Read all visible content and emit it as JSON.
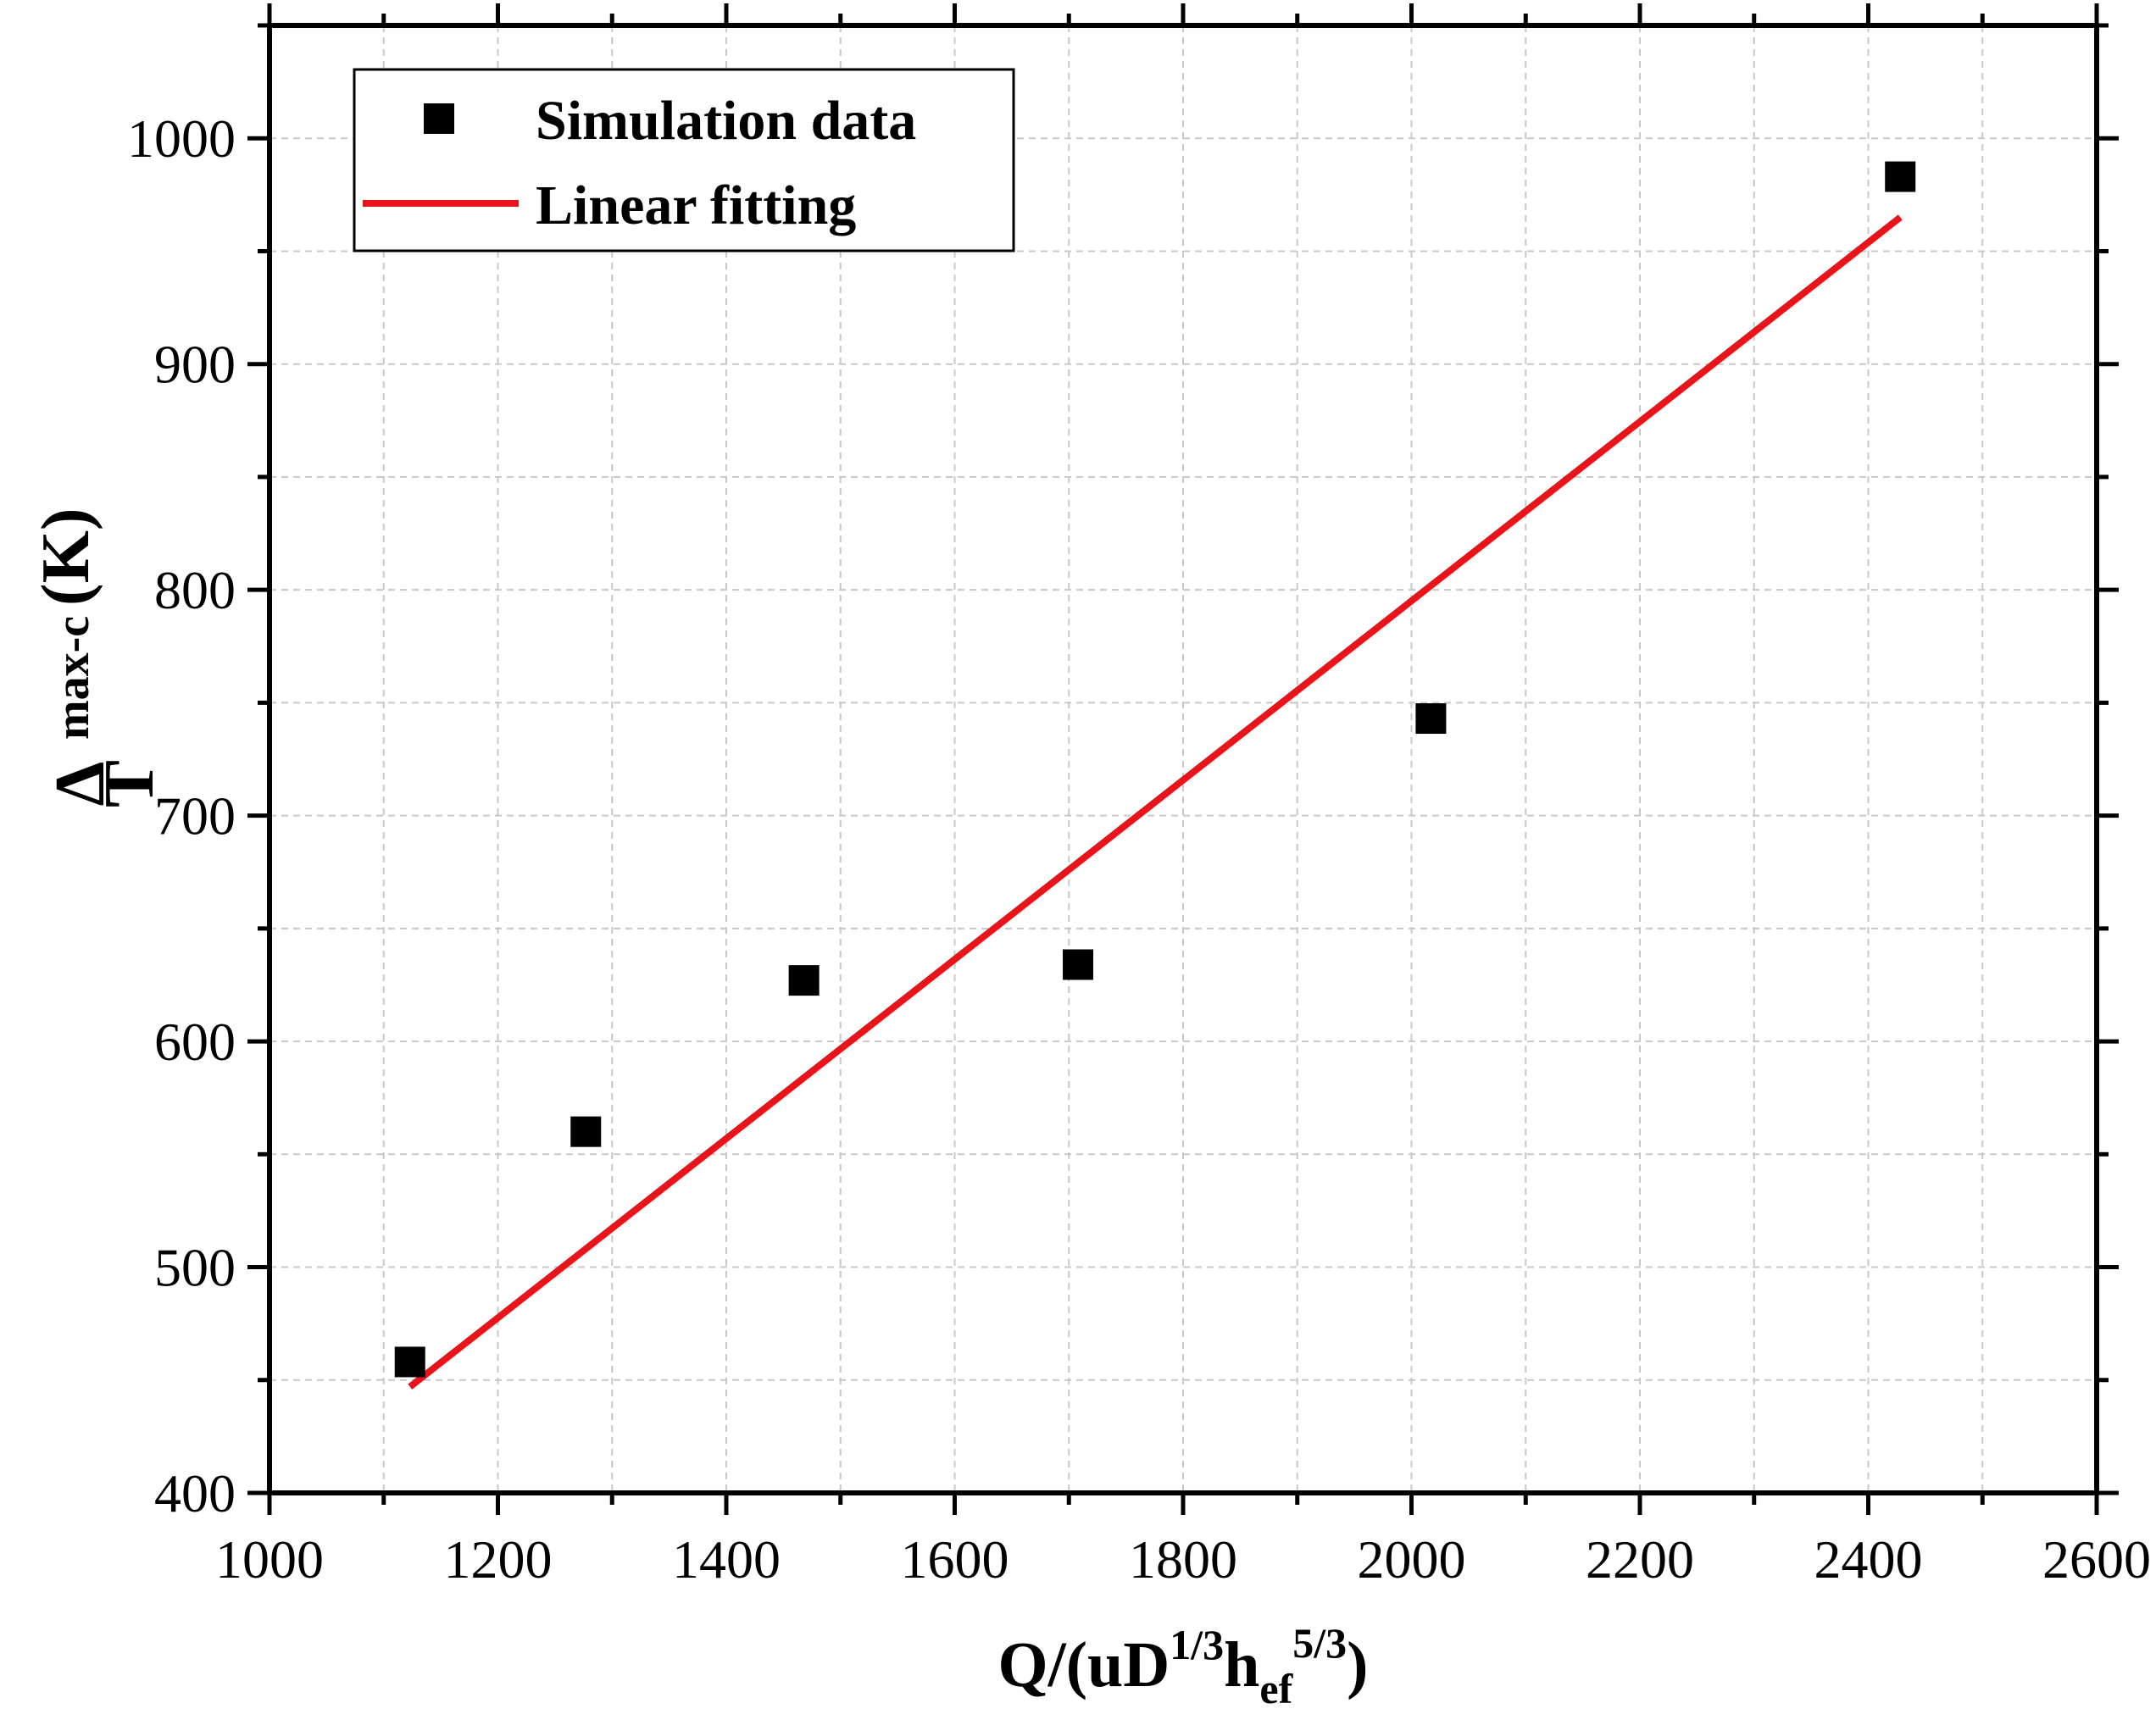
{
  "chart_data": {
    "type": "scatter",
    "title": "",
    "xlabel": {
      "base": "Q/(uD",
      "sup1": "1/3",
      "mid": "h",
      "sub": "ef",
      "sup2": "5/3",
      "close": ")"
    },
    "ylabel": {
      "delta": "Δ",
      "base": "T",
      "sub": "max-c",
      "unit": "(K)"
    },
    "xlim": [
      1000,
      2600
    ],
    "ylim": [
      400,
      1050
    ],
    "x_ticks": [
      1000,
      1200,
      1400,
      1600,
      1800,
      2000,
      2200,
      2400,
      2600
    ],
    "y_ticks": [
      400,
      500,
      600,
      700,
      800,
      900,
      1000
    ],
    "x_tick_labels": [
      "1000",
      "1200",
      "1400",
      "1600",
      "1800",
      "2000",
      "2200",
      "2400",
      "2600"
    ],
    "y_tick_labels": [
      "400",
      "500",
      "600",
      "700",
      "800",
      "900",
      "1000"
    ],
    "grid": true,
    "legend_position": "top-left",
    "series": [
      {
        "name": "Simulation data",
        "kind": "scatter",
        "marker": "square",
        "color": "#000000",
        "points": [
          {
            "x": 1123,
            "y": 458
          },
          {
            "x": 1277,
            "y": 560
          },
          {
            "x": 1468,
            "y": 627
          },
          {
            "x": 1708,
            "y": 634
          },
          {
            "x": 2017,
            "y": 743
          },
          {
            "x": 2428,
            "y": 983
          }
        ]
      },
      {
        "name": "Linear fitting",
        "kind": "line",
        "color": "#e8141a",
        "x": [
          1123,
          2428
        ],
        "y": [
          447,
          965
        ]
      }
    ]
  }
}
